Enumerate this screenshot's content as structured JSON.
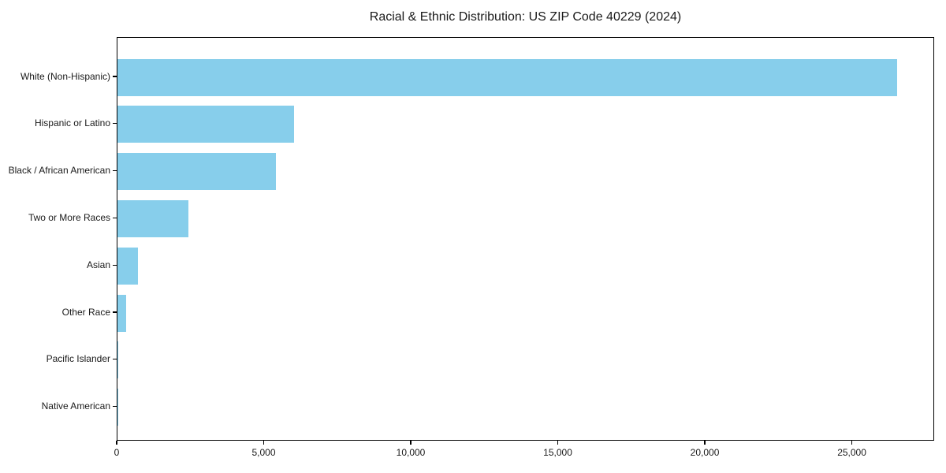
{
  "chart_data": {
    "type": "bar",
    "orientation": "horizontal",
    "title": "Racial & Ethnic Distribution: US ZIP Code 40229 (2024)",
    "categories": [
      "White (Non-Hispanic)",
      "Hispanic or Latino",
      "Black / African American",
      "Two or More Races",
      "Asian",
      "Other Race",
      "Pacific Islander",
      "Native American"
    ],
    "values": [
      26500,
      6000,
      5400,
      2400,
      700,
      300,
      20,
      10
    ],
    "x_ticks": [
      0,
      5000,
      10000,
      15000,
      20000,
      25000
    ],
    "x_tick_labels": [
      "0",
      "5,000",
      "10,000",
      "15,000",
      "20,000",
      "25,000"
    ],
    "xlim": [
      0,
      27800
    ],
    "xlabel": "",
    "ylabel": "",
    "grid": false,
    "legend": null,
    "bar_color": "#87CEEB",
    "axis_color": "#000000",
    "text_color": "#1a1a1a",
    "background_color": "#ffffff"
  }
}
